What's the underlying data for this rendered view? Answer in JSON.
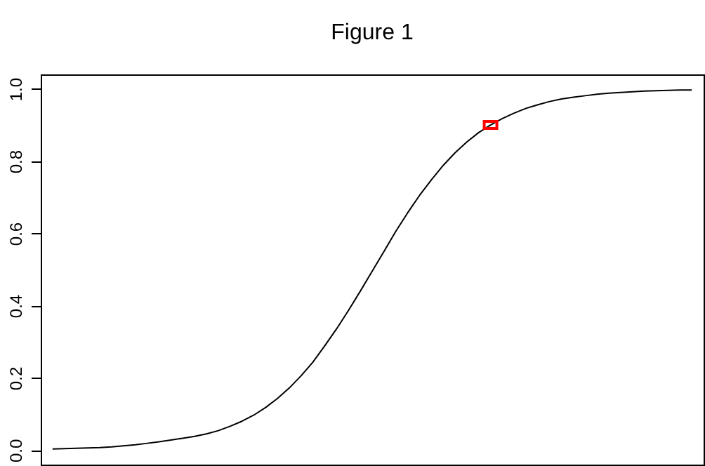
{
  "chart_data": {
    "type": "line",
    "title": "Figure 1",
    "categories": [
      null,
      null,
      null,
      null,
      null,
      null,
      null,
      null,
      null,
      null,
      null,
      null,
      null,
      null,
      null,
      null,
      null,
      null,
      null,
      null,
      null,
      null,
      null,
      null,
      null,
      null,
      null,
      null,
      null,
      null,
      null,
      null,
      null,
      null,
      null,
      null,
      null,
      null,
      null,
      null,
      null,
      null,
      null,
      null,
      null,
      null,
      null,
      null,
      null,
      null,
      null,
      null,
      null,
      null,
      null
    ],
    "series": [
      {
        "color": "#000000",
        "values": [
          0.003,
          0.004,
          0.005,
          0.006,
          0.007,
          0.009,
          0.012,
          0.015,
          0.019,
          0.023,
          0.028,
          0.033,
          0.038,
          0.045,
          0.054,
          0.066,
          0.08,
          0.097,
          0.118,
          0.143,
          0.172,
          0.206,
          0.244,
          0.289,
          0.336,
          0.387,
          0.44,
          0.495,
          0.55,
          0.606,
          0.657,
          0.705,
          0.748,
          0.788,
          0.823,
          0.853,
          0.879,
          0.9,
          0.918,
          0.933,
          0.946,
          0.956,
          0.965,
          0.972,
          0.977,
          0.981,
          0.985,
          0.988,
          0.99,
          0.992,
          0.994,
          0.995,
          0.996,
          0.997,
          0.997
        ]
      },
      {
        "type": "scatter",
        "color": "#ff0000",
        "marker": "square",
        "values": [
          null,
          null,
          null,
          null,
          null,
          null,
          null,
          null,
          null,
          null,
          null,
          null,
          null,
          null,
          null,
          null,
          null,
          null,
          null,
          null,
          null,
          null,
          null,
          null,
          null,
          null,
          null,
          null,
          null,
          null,
          null,
          null,
          null,
          null,
          null,
          null,
          null,
          0.9,
          null,
          null,
          null,
          null,
          null,
          null,
          null,
          null,
          null,
          null,
          null,
          null,
          null,
          null,
          null,
          null,
          null
        ]
      }
    ],
    "ylim": [
      -0.04,
      1.04
    ],
    "yticks": [
      {
        "value": 0,
        "label": "0.0"
      },
      {
        "value": 0.2,
        "label": "0.2"
      },
      {
        "value": 0.4,
        "label": "0.4"
      },
      {
        "value": 0.6,
        "label": "0.6"
      },
      {
        "value": 0.8,
        "label": "0.8"
      },
      {
        "value": 1,
        "label": "1.0"
      }
    ],
    "grid": false
  }
}
